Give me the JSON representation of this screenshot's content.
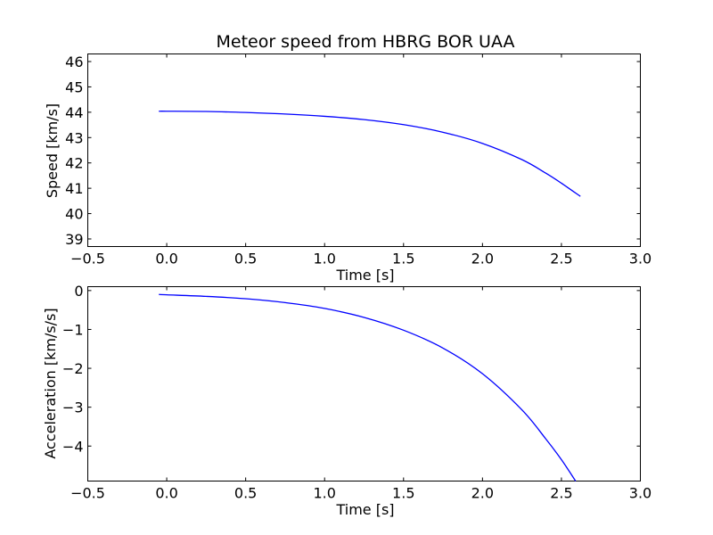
{
  "chart_data": [
    {
      "type": "line",
      "title": "Meteor speed from  HBRG BOR UAA",
      "xlabel": "Time [s]",
      "ylabel": "Speed [km/s]",
      "xlim": [
        -0.5,
        3.0
      ],
      "ylim": [
        38.7,
        46.3
      ],
      "xticks": [
        -0.5,
        0.0,
        0.5,
        1.0,
        1.5,
        2.0,
        2.5,
        3.0
      ],
      "xtick_labels": [
        "−0.5",
        "0.0",
        "0.5",
        "1.0",
        "1.5",
        "2.0",
        "2.5",
        "3.0"
      ],
      "yticks": [
        39,
        40,
        41,
        42,
        43,
        44,
        45,
        46
      ],
      "ytick_labels": [
        "39",
        "40",
        "41",
        "42",
        "43",
        "44",
        "45",
        "46"
      ],
      "grid": false,
      "series": [
        {
          "color": "#0000ff",
          "x": [
            -0.05,
            0.0,
            0.25,
            0.5,
            0.75,
            1.0,
            1.25,
            1.5,
            1.75,
            2.0,
            2.25,
            2.4,
            2.5,
            2.62
          ],
          "y": [
            44.04,
            44.04,
            44.03,
            43.99,
            43.93,
            43.84,
            43.71,
            43.51,
            43.21,
            42.77,
            42.13,
            41.6,
            41.2,
            40.68
          ]
        }
      ]
    },
    {
      "type": "line",
      "title": "",
      "xlabel": "Time [s]",
      "ylabel": "Acceleration [km/s/s]",
      "xlim": [
        -0.5,
        3.0
      ],
      "ylim": [
        -4.9,
        0.1
      ],
      "xticks": [
        -0.5,
        0.0,
        0.5,
        1.0,
        1.5,
        2.0,
        2.5,
        3.0
      ],
      "xtick_labels": [
        "−0.5",
        "0.0",
        "0.5",
        "1.0",
        "1.5",
        "2.0",
        "2.5",
        "3.0"
      ],
      "yticks": [
        0,
        -1,
        -2,
        -3,
        -4
      ],
      "ytick_labels": [
        "0",
        "−1",
        "−2",
        "−3",
        "−4"
      ],
      "grid": false,
      "series": [
        {
          "color": "#0000ff",
          "x": [
            -0.05,
            0.0,
            0.25,
            0.5,
            0.75,
            1.0,
            1.25,
            1.5,
            1.75,
            2.0,
            2.25,
            2.4,
            2.5,
            2.59
          ],
          "y": [
            -0.1,
            -0.11,
            -0.15,
            -0.21,
            -0.31,
            -0.46,
            -0.69,
            -1.02,
            -1.48,
            -2.14,
            -3.07,
            -3.81,
            -4.35,
            -4.9
          ]
        }
      ]
    }
  ]
}
